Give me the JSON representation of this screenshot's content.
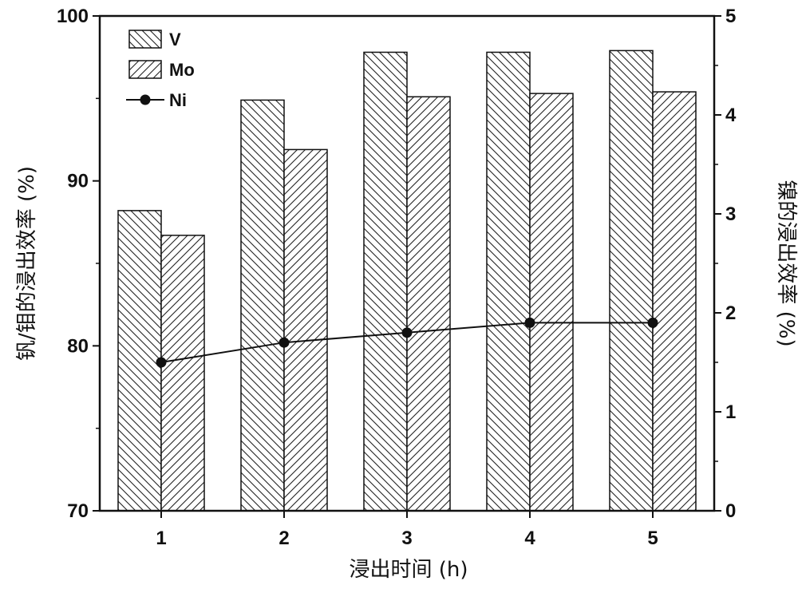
{
  "chart_data": {
    "type": "bar",
    "categories": [
      "1",
      "2",
      "3",
      "4",
      "5"
    ],
    "series": [
      {
        "name": "V",
        "axis": "left",
        "kind": "bar",
        "pattern": "backslash-hatch",
        "values": [
          88.2,
          94.9,
          97.8,
          97.8,
          97.9
        ]
      },
      {
        "name": "Mo",
        "axis": "left",
        "kind": "bar",
        "pattern": "slash-hatch",
        "values": [
          86.7,
          91.9,
          95.1,
          95.3,
          95.4
        ]
      },
      {
        "name": "Ni",
        "axis": "right",
        "kind": "line",
        "marker": "circle",
        "values": [
          1.5,
          1.7,
          1.8,
          1.9,
          1.9
        ]
      }
    ],
    "xlabel": "浸出时间 (h)",
    "ylabel": "钒/钼的浸出效率 (%)",
    "y2label": "镍的浸出效率 (%)",
    "ylim": [
      70,
      100
    ],
    "y2lim": [
      0,
      5
    ],
    "yticks": [
      "70",
      "80",
      "90",
      "100"
    ],
    "y2ticks": [
      "0",
      "1",
      "2",
      "3",
      "4",
      "5"
    ],
    "grid": false,
    "legend": "top-left",
    "colors": {
      "ink": "#111111",
      "background": "#ffffff"
    }
  }
}
